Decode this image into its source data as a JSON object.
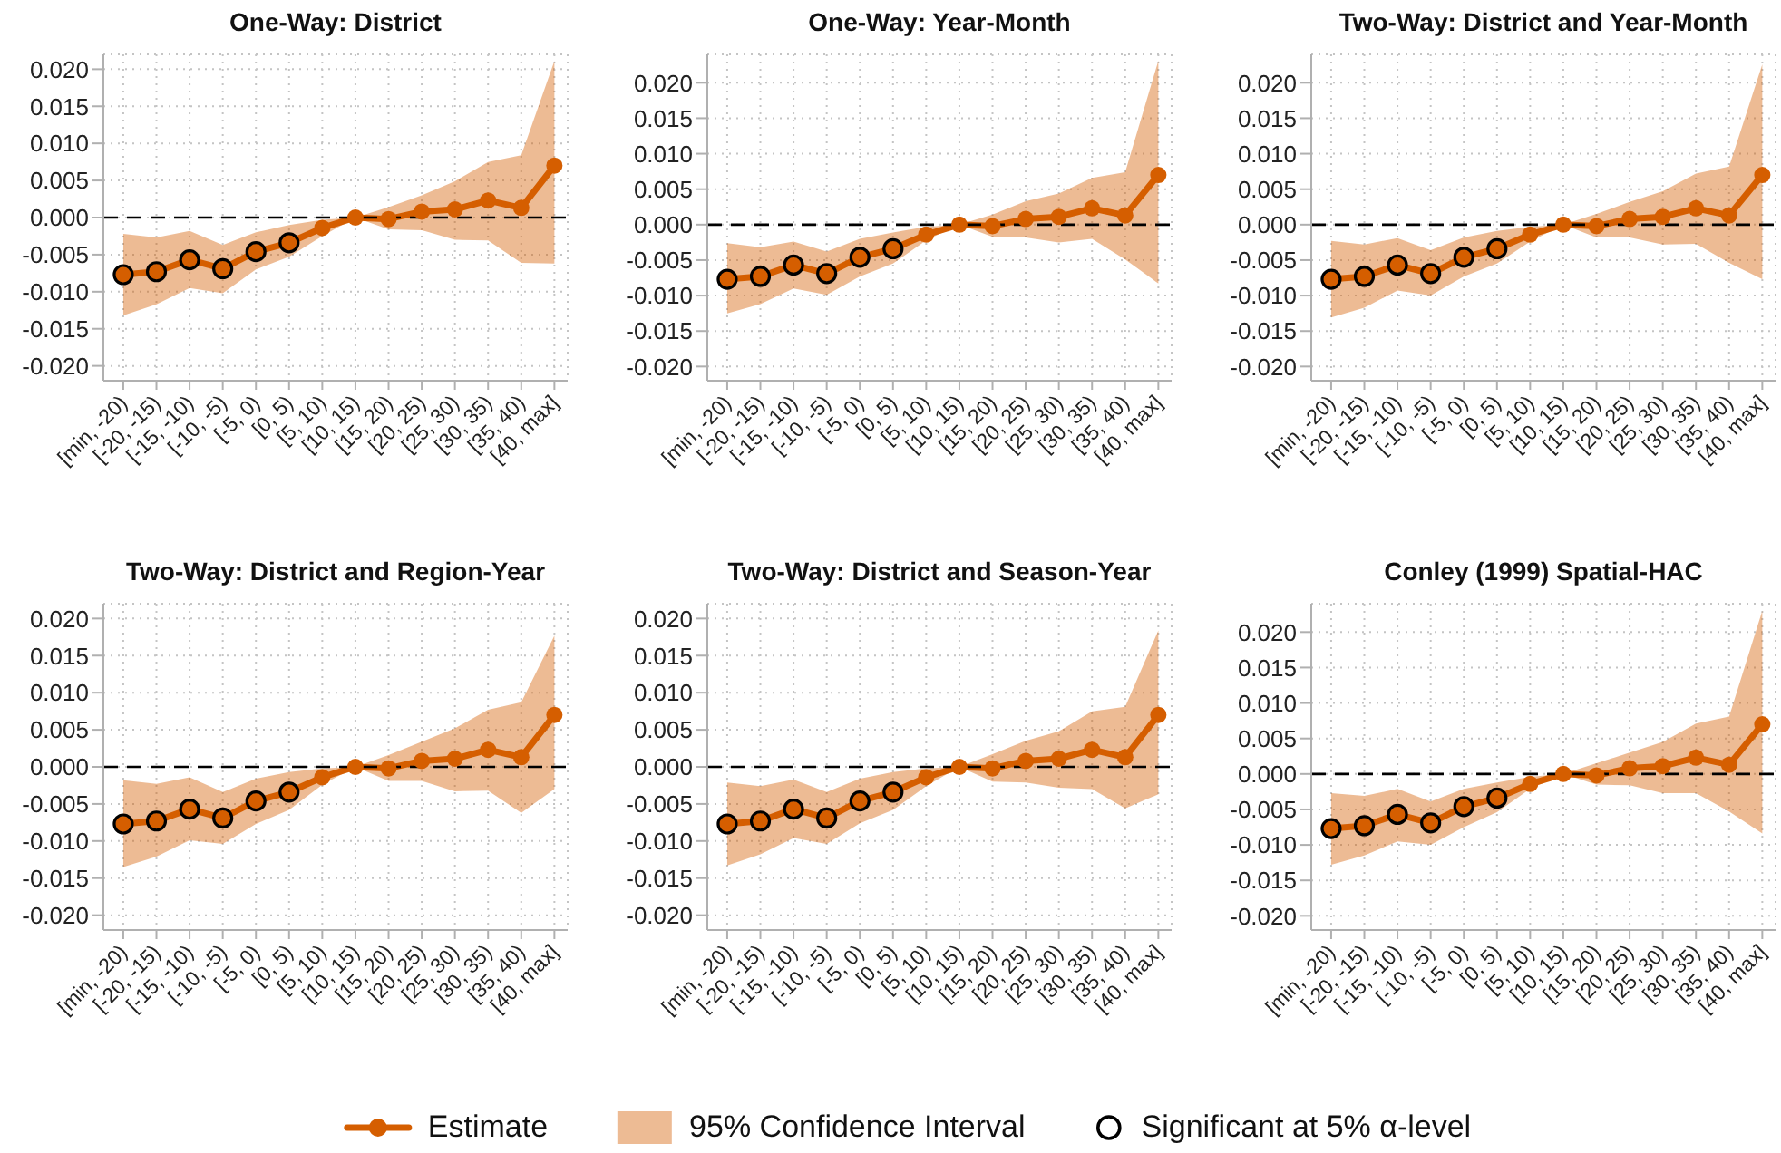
{
  "chart_data": [
    {
      "type": "line",
      "title": "One-Way: District",
      "categories": [
        "[min, -20)",
        "[-20, -15)",
        "[-15, -10)",
        "[-10, -5)",
        "[-5, 0)",
        "[0, 5)",
        "[5, 10)",
        "[10, 15)",
        "[15, 20)",
        "[20, 25)",
        "[25, 30)",
        "[30, 35)",
        "[35, 40)",
        "[40, max]"
      ],
      "series": [
        {
          "color": "#d55e00",
          "values": [
            -0.0077,
            -0.0073,
            -0.0057,
            -0.0069,
            -0.0046,
            -0.0034,
            -0.0014,
            0,
            -0.0002,
            0.0008,
            0.0011,
            0.0023,
            0.0013,
            0.007
          ],
          "lower": [
            -0.0132,
            -0.0117,
            -0.0095,
            -0.0102,
            -0.007,
            -0.0053,
            -0.0025,
            0,
            -0.0016,
            -0.0017,
            -0.003,
            -0.0031,
            -0.0061,
            -0.0062
          ],
          "upper": [
            -0.0022,
            -0.0027,
            -0.0018,
            -0.0037,
            -0.002,
            -0.001,
            -0.0003,
            0,
            0.0014,
            0.003,
            0.0049,
            0.0075,
            0.0084,
            0.0211
          ]
        },
        {
          "type": "scatter",
          "color": "#000000",
          "values": [
            -0.0077,
            -0.0073,
            -0.0057,
            -0.0069,
            -0.0046,
            -0.0034,
            null,
            null,
            null,
            null,
            null,
            null,
            null,
            null
          ]
        }
      ],
      "ylim": [
        -0.022,
        0.022
      ],
      "yticks": [
        {
          "value": -0.02,
          "label": "-0.020"
        },
        -0.015,
        {
          "value": -0.01,
          "label": "-0.010"
        },
        -0.005,
        {
          "value": 0,
          "label": "0.000"
        },
        0.005,
        {
          "value": 0.01,
          "label": "0.010"
        },
        0.015,
        {
          "value": 0.02,
          "label": "0.020"
        }
      ],
      "grid": true,
      "marker": "circle",
      "ref_lines": [
        {
          "axis": "y",
          "value": 0,
          "color": "#000000",
          "line_style": "dashed"
        }
      ]
    },
    {
      "type": "line",
      "title": "One-Way: Year-Month",
      "categories": [
        "[min, -20)",
        "[-20, -15)",
        "[-15, -10)",
        "[-10, -5)",
        "[-5, 0)",
        "[0, 5)",
        "[5, 10)",
        "[10, 15)",
        "[15, 20)",
        "[20, 25)",
        "[25, 30)",
        "[30, 35)",
        "[35, 40)",
        "[40, max]"
      ],
      "series": [
        {
          "color": "#d55e00",
          "values": [
            -0.0077,
            -0.0073,
            -0.0057,
            -0.0069,
            -0.0046,
            -0.0034,
            -0.0014,
            0,
            -0.0002,
            0.0008,
            0.0011,
            0.0023,
            0.0013,
            0.007
          ],
          "lower": [
            -0.0125,
            -0.0112,
            -0.009,
            -0.0099,
            -0.0073,
            -0.0055,
            -0.0022,
            0,
            -0.0017,
            -0.0018,
            -0.0025,
            -0.002,
            -0.0049,
            -0.0083
          ],
          "upper": [
            -0.0026,
            -0.0032,
            -0.0024,
            -0.0038,
            -0.002,
            -0.0011,
            -0.0003,
            0,
            0.0014,
            0.0033,
            0.0044,
            0.0066,
            0.0074,
            0.0231
          ]
        },
        {
          "type": "scatter",
          "color": "#000000",
          "values": [
            -0.0077,
            -0.0073,
            -0.0057,
            -0.0069,
            -0.0046,
            -0.0034,
            null,
            null,
            null,
            null,
            null,
            null,
            null,
            null
          ]
        }
      ],
      "ylim": [
        -0.022,
        0.024
      ],
      "yticks": [
        {
          "value": -0.02,
          "label": "-0.020"
        },
        -0.015,
        {
          "value": -0.01,
          "label": "-0.010"
        },
        -0.005,
        {
          "value": 0,
          "label": "0.000"
        },
        0.005,
        {
          "value": 0.01,
          "label": "0.010"
        },
        0.015,
        {
          "value": 0.02,
          "label": "0.020"
        }
      ],
      "grid": true,
      "marker": "circle",
      "ref_lines": [
        {
          "axis": "y",
          "value": 0,
          "color": "#000000",
          "line_style": "dashed"
        }
      ]
    },
    {
      "type": "line",
      "title": "Two-Way: District and Year-Month",
      "categories": [
        "[min, -20)",
        "[-20, -15)",
        "[-15, -10)",
        "[-10, -5)",
        "[-5, 0)",
        "[0, 5)",
        "[5, 10)",
        "[10, 15)",
        "[15, 20)",
        "[20, 25)",
        "[25, 30)",
        "[30, 35)",
        "[35, 40)",
        "[40, max]"
      ],
      "series": [
        {
          "color": "#d55e00",
          "values": [
            -0.0077,
            -0.0073,
            -0.0057,
            -0.0069,
            -0.0046,
            -0.0034,
            -0.0014,
            0,
            -0.0002,
            0.0008,
            0.0011,
            0.0023,
            0.0013,
            0.007
          ],
          "lower": [
            -0.0131,
            -0.0117,
            -0.0093,
            -0.01,
            -0.0073,
            -0.0055,
            -0.0024,
            0,
            -0.0018,
            -0.0018,
            -0.0028,
            -0.0027,
            -0.0054,
            -0.0077
          ],
          "upper": [
            -0.0023,
            -0.0028,
            -0.0019,
            -0.0036,
            -0.0018,
            -0.0009,
            -0.0003,
            0,
            0.0015,
            0.0032,
            0.0047,
            0.0072,
            0.0082,
            0.0226
          ]
        },
        {
          "type": "scatter",
          "color": "#000000",
          "values": [
            -0.0077,
            -0.0073,
            -0.0057,
            -0.0069,
            -0.0046,
            -0.0034,
            null,
            null,
            null,
            null,
            null,
            null,
            null,
            null
          ]
        }
      ],
      "ylim": [
        -0.022,
        0.024
      ],
      "yticks": [
        {
          "value": -0.02,
          "label": "-0.020"
        },
        -0.015,
        {
          "value": -0.01,
          "label": "-0.010"
        },
        -0.005,
        {
          "value": 0,
          "label": "0.000"
        },
        0.005,
        {
          "value": 0.01,
          "label": "0.010"
        },
        0.015,
        {
          "value": 0.02,
          "label": "0.020"
        }
      ],
      "grid": true,
      "marker": "circle",
      "ref_lines": [
        {
          "axis": "y",
          "value": 0,
          "color": "#000000",
          "line_style": "dashed"
        }
      ]
    },
    {
      "type": "line",
      "title": "Two-Way: District and Region-Year",
      "categories": [
        "[min, -20)",
        "[-20, -15)",
        "[-15, -10)",
        "[-10, -5)",
        "[-5, 0)",
        "[0, 5)",
        "[5, 10)",
        "[10, 15)",
        "[15, 20)",
        "[20, 25)",
        "[25, 30)",
        "[30, 35)",
        "[35, 40)",
        "[40, max]"
      ],
      "series": [
        {
          "color": "#d55e00",
          "values": [
            -0.0077,
            -0.0073,
            -0.0057,
            -0.0069,
            -0.0046,
            -0.0034,
            -0.0014,
            0,
            -0.0002,
            0.0008,
            0.0011,
            0.0023,
            0.0013,
            0.007
          ],
          "lower": [
            -0.0135,
            -0.0121,
            -0.0099,
            -0.0104,
            -0.0077,
            -0.0058,
            -0.0024,
            0,
            -0.0019,
            -0.0019,
            -0.0033,
            -0.0032,
            -0.0062,
            -0.003
          ],
          "upper": [
            -0.0018,
            -0.0023,
            -0.0014,
            -0.0034,
            -0.0016,
            -0.0007,
            -0.0002,
            0,
            0.0016,
            0.0034,
            0.0052,
            0.0077,
            0.0087,
            0.0177
          ]
        },
        {
          "type": "scatter",
          "color": "#000000",
          "values": [
            -0.0077,
            -0.0073,
            -0.0057,
            -0.0069,
            -0.0046,
            -0.0034,
            null,
            null,
            null,
            null,
            null,
            null,
            null,
            null
          ]
        }
      ],
      "ylim": [
        -0.022,
        0.022
      ],
      "yticks": [
        {
          "value": -0.02,
          "label": "-0.020"
        },
        -0.015,
        {
          "value": -0.01,
          "label": "-0.010"
        },
        -0.005,
        {
          "value": 0,
          "label": "0.000"
        },
        0.005,
        {
          "value": 0.01,
          "label": "0.010"
        },
        0.015,
        {
          "value": 0.02,
          "label": "0.020"
        }
      ],
      "grid": true,
      "marker": "circle",
      "ref_lines": [
        {
          "axis": "y",
          "value": 0,
          "color": "#000000",
          "line_style": "dashed"
        }
      ]
    },
    {
      "type": "line",
      "title": "Two-Way: District and Season-Year",
      "categories": [
        "[min, -20)",
        "[-20, -15)",
        "[-15, -10)",
        "[-10, -5)",
        "[-5, 0)",
        "[0, 5)",
        "[5, 10)",
        "[10, 15)",
        "[15, 20)",
        "[20, 25)",
        "[25, 30)",
        "[30, 35)",
        "[35, 40)",
        "[40, max]"
      ],
      "series": [
        {
          "name": "Estimate",
          "color": "#d55e00",
          "values": [
            -0.0077,
            -0.0073,
            -0.0057,
            -0.0069,
            -0.0046,
            -0.0034,
            -0.0014,
            0,
            -0.0002,
            0.0008,
            0.0011,
            0.0023,
            0.0013,
            0.007
          ],
          "lower": [
            -0.0133,
            -0.0118,
            -0.0096,
            -0.0104,
            -0.0076,
            -0.0058,
            -0.0026,
            0,
            -0.002,
            -0.0021,
            -0.0028,
            -0.003,
            -0.0056,
            -0.0037
          ],
          "upper": [
            -0.0021,
            -0.0026,
            -0.0017,
            -0.0034,
            -0.0016,
            -0.0007,
            -0.0002,
            0,
            0.0017,
            0.0035,
            0.0048,
            0.0075,
            0.0081,
            0.0184
          ]
        },
        {
          "name": "Significant at 5% α-level",
          "type": "scatter",
          "color": "#000000",
          "values": [
            -0.0077,
            -0.0073,
            -0.0057,
            -0.0069,
            -0.0046,
            -0.0034,
            null,
            null,
            null,
            null,
            null,
            null,
            null,
            null
          ]
        }
      ],
      "ylim": [
        -0.022,
        0.022
      ],
      "yticks": [
        {
          "value": -0.02,
          "label": "-0.020"
        },
        -0.015,
        {
          "value": -0.01,
          "label": "-0.010"
        },
        -0.005,
        {
          "value": 0,
          "label": "0.000"
        },
        0.005,
        {
          "value": 0.01,
          "label": "0.010"
        },
        0.015,
        {
          "value": 0.02,
          "label": "0.020"
        }
      ],
      "grid": true,
      "marker": "circle",
      "legend": "bottom",
      "annotations": [
        "95% Confidence Interval"
      ],
      "ref_lines": [
        {
          "axis": "y",
          "value": 0,
          "color": "#000000",
          "line_style": "dashed"
        }
      ]
    },
    {
      "type": "line",
      "title": "Conley (1999) Spatial-HAC",
      "categories": [
        "[min, -20)",
        "[-20, -15)",
        "[-15, -10)",
        "[-10, -5)",
        "[-5, 0)",
        "[0, 5)",
        "[5, 10)",
        "[10, 15)",
        "[15, 20)",
        "[20, 25)",
        "[25, 30)",
        "[30, 35)",
        "[35, 40)",
        "[40, max]"
      ],
      "series": [
        {
          "color": "#d55e00",
          "values": [
            -0.0077,
            -0.0073,
            -0.0057,
            -0.0069,
            -0.0046,
            -0.0034,
            -0.0014,
            0,
            -0.0002,
            0.0008,
            0.0011,
            0.0023,
            0.0013,
            0.007
          ],
          "lower": [
            -0.0128,
            -0.0115,
            -0.0095,
            -0.01,
            -0.0075,
            -0.0054,
            -0.0021,
            0,
            -0.0015,
            -0.0016,
            -0.0027,
            -0.0027,
            -0.0053,
            -0.0084
          ],
          "upper": [
            -0.0027,
            -0.0031,
            -0.0021,
            -0.0039,
            -0.0021,
            -0.0012,
            -0.0004,
            0,
            0.0015,
            0.003,
            0.0045,
            0.0071,
            0.0081,
            0.023
          ]
        },
        {
          "type": "scatter",
          "color": "#000000",
          "values": [
            -0.0077,
            -0.0073,
            -0.0057,
            -0.0069,
            -0.0046,
            -0.0034,
            null,
            null,
            null,
            null,
            null,
            null,
            null,
            null
          ]
        }
      ],
      "ylim": [
        -0.022,
        0.024
      ],
      "yticks": [
        {
          "value": -0.02,
          "label": "-0.020"
        },
        -0.015,
        {
          "value": -0.01,
          "label": "-0.010"
        },
        -0.005,
        {
          "value": 0,
          "label": "0.000"
        },
        0.005,
        {
          "value": 0.01,
          "label": "0.010"
        },
        0.015,
        {
          "value": 0.02,
          "label": "0.020"
        }
      ],
      "grid": true,
      "marker": "circle",
      "ref_lines": [
        {
          "axis": "y",
          "value": 0,
          "color": "#000000",
          "line_style": "dashed"
        }
      ]
    }
  ]
}
